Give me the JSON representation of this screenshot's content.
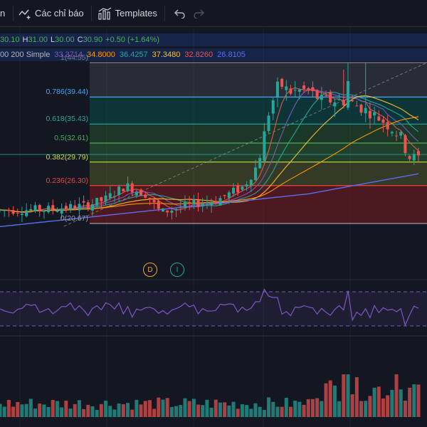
{
  "toolbar": {
    "partial_label": "n",
    "indicators_label": "Các chỉ báo",
    "templates_label": "Templates"
  },
  "legend": {
    "ohlc": [
      {
        "key": "",
        "value": "30.10"
      },
      {
        "key": "H",
        "value": "31.00"
      },
      {
        "key": "L",
        "value": "30.00"
      },
      {
        "key": "C",
        "value": "30.90"
      },
      {
        "key": "",
        "value": "+0.50 (+1.64%)"
      }
    ],
    "ma_title": "00 200 Simple",
    "ma_values": [
      {
        "value": "33.3714",
        "color": "#7e57c2"
      },
      {
        "value": "34.8000",
        "color": "#ff9800"
      },
      {
        "value": "36.4257",
        "color": "#26a69a"
      },
      {
        "value": "37.3480",
        "color": "#fbc02d"
      },
      {
        "value": "32.8260",
        "color": "#ef5350"
      },
      {
        "value": "26.8105",
        "color": "#5b6cf5"
      }
    ]
  },
  "fib_levels": [
    {
      "ratio": 1,
      "label": "1(44.55)",
      "price": 44.55,
      "color": "#787b86",
      "fill": "rgba(120,123,134,0.22)"
    },
    {
      "ratio": 0.786,
      "label": "0.786(39.44)",
      "price": 39.44,
      "color": "#42a5f5",
      "fill": "rgba(0,121,107,0.30)"
    },
    {
      "ratio": 0.618,
      "label": "0.618(35.43)",
      "price": 35.43,
      "color": "#26a69a",
      "fill": "rgba(46,125,50,0.32)"
    },
    {
      "ratio": 0.5,
      "label": "0.5(32.61)",
      "price": 32.61,
      "color": "#4caf50",
      "fill": "rgba(67,160,71,0.30)"
    },
    {
      "ratio": 0.382,
      "label": "0.382(29.79)",
      "price": 29.79,
      "color": "#cddc39",
      "fill": "rgba(205,220,57,0.18)"
    },
    {
      "ratio": 0.236,
      "label": "0.236(26.30)",
      "price": 26.3,
      "color": "#f44336",
      "fill": "rgba(183,28,28,0.35)"
    },
    {
      "ratio": 0,
      "label": "0(20.67)",
      "price": 20.67,
      "color": "#9e9e9e",
      "fill": ""
    }
  ],
  "markers": [
    {
      "label": "D",
      "color": "#f5a623"
    },
    {
      "label": "I",
      "color": "#26a69a"
    }
  ],
  "colors": {
    "up": "#26a69a",
    "down": "#ef5350",
    "background": "#131722",
    "rsi": "#7e57c2"
  }
}
